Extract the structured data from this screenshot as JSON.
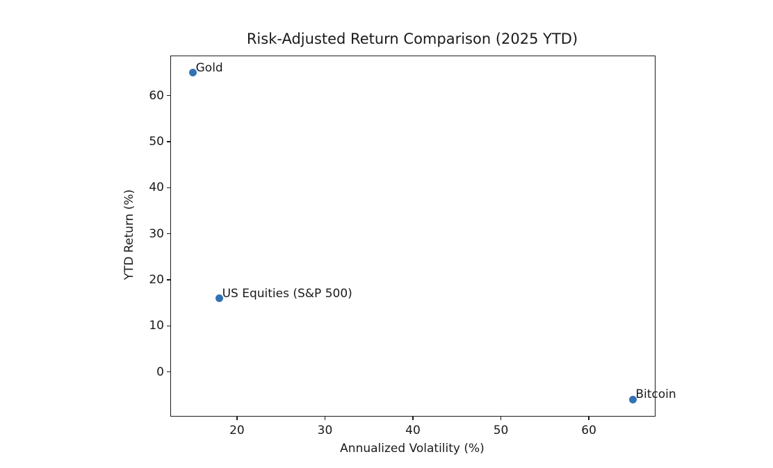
{
  "chart_data": {
    "type": "scatter",
    "title": "Risk-Adjusted Return Comparison (2025 YTD)",
    "xlabel": "Annualized Volatility (%)",
    "ylabel": "YTD Return (%)",
    "xlim": [
      12.5,
      67.5
    ],
    "ylim": [
      -9.55,
      68.55
    ],
    "xticks": [
      20,
      30,
      40,
      50,
      60
    ],
    "yticks": [
      0,
      10,
      20,
      30,
      40,
      50,
      60
    ],
    "grid": false,
    "legend": "none",
    "marker_color": "#3373b3",
    "axis_color": "#1a1a1a",
    "background_color": "#ffffff",
    "points": [
      {
        "label": "Gold",
        "x": 15,
        "y": 65
      },
      {
        "label": "US Equities (S&P 500)",
        "x": 18,
        "y": 16
      },
      {
        "label": "Bitcoin",
        "x": 65,
        "y": -6
      }
    ]
  }
}
